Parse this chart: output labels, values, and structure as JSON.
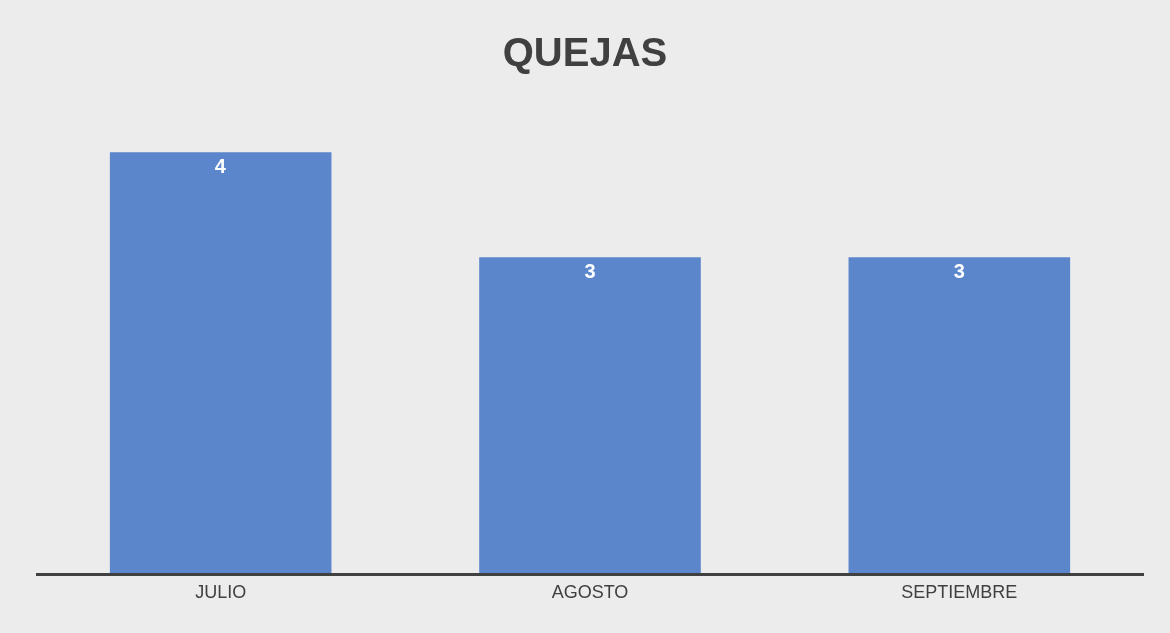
{
  "chart_data": {
    "type": "bar",
    "title": "QUEJAS",
    "categories": [
      "JULIO",
      "AGOSTO",
      "SEPTIEMBRE"
    ],
    "values": [
      4,
      3,
      3
    ],
    "color": "#5b86cc",
    "data_labels": true,
    "grid": false,
    "legend": false
  }
}
